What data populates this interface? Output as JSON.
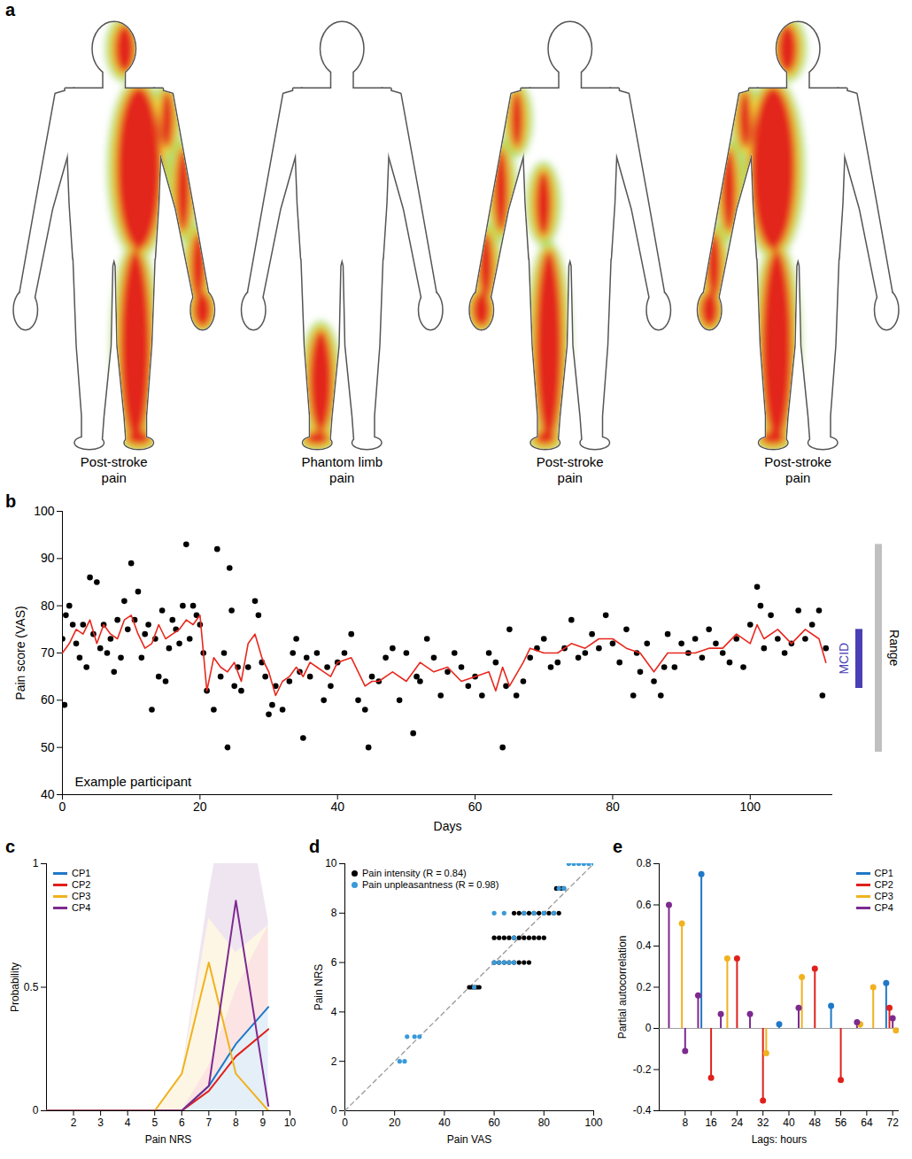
{
  "chart_data": [
    {
      "type": "body_map",
      "panel": "a",
      "figures": [
        {
          "label": "Post-stroke pain"
        },
        {
          "label": "Phantom limb pain"
        },
        {
          "label": "Post-stroke pain"
        },
        {
          "label": "Post-stroke pain"
        }
      ]
    },
    {
      "type": "scatter",
      "panel": "b",
      "xlabel": "Days",
      "ylabel": "Pain score (VAS)",
      "xlim": [
        0,
        112
      ],
      "xticks": [
        0,
        20,
        40,
        60,
        80,
        100
      ],
      "ylim": [
        40,
        100
      ],
      "yticks": [
        40,
        50,
        60,
        70,
        80,
        90,
        100
      ],
      "series": [
        {
          "type": "scatter",
          "color": "#000000",
          "marker": "circle",
          "x": [
            0,
            0.3,
            0.5,
            1,
            1.5,
            2,
            2.5,
            3,
            3.5,
            4,
            4.5,
            5,
            5.5,
            6,
            6.5,
            7,
            7.5,
            8,
            8.5,
            9,
            9.5,
            10,
            10.5,
            11,
            11.5,
            12,
            12.5,
            13,
            13.5,
            14,
            14.5,
            15,
            15.5,
            16,
            16.5,
            17,
            17.5,
            18,
            18.5,
            19,
            19.5,
            20,
            20.5,
            21,
            22,
            22.5,
            23,
            23.5,
            24,
            24.3,
            24.6,
            25,
            25.5,
            26,
            27,
            28,
            28.5,
            29,
            29.5,
            30,
            30.5,
            31,
            32,
            33,
            33.5,
            34,
            34.5,
            35,
            35.5,
            36,
            37,
            38,
            38.5,
            39,
            40,
            41,
            42,
            43,
            44,
            44.5,
            45,
            46,
            47,
            48,
            49,
            50,
            51,
            51.5,
            52,
            53,
            54,
            55,
            56,
            57,
            58,
            59,
            60,
            61,
            62,
            63,
            64,
            64.5,
            65,
            66,
            67,
            68,
            69,
            70,
            71,
            72,
            73,
            74,
            75,
            76,
            77,
            78,
            79,
            80,
            81,
            82,
            83,
            83.5,
            84,
            85,
            86,
            87,
            87.5,
            88,
            89,
            90,
            91,
            92,
            93,
            94,
            95,
            96,
            97,
            98,
            99,
            100,
            101,
            101.5,
            102,
            103,
            104,
            105,
            106,
            107,
            108,
            109,
            110,
            110.5,
            111
          ],
          "values": [
            73,
            59,
            78,
            80,
            76,
            72,
            69,
            76,
            67,
            86,
            74,
            85,
            71,
            76,
            70,
            73,
            66,
            77,
            69,
            81,
            75,
            89,
            77,
            83,
            69,
            74,
            76,
            58,
            73,
            65,
            79,
            64,
            71,
            77,
            75,
            72,
            80,
            93,
            73,
            80,
            78,
            76,
            70,
            62,
            58,
            92,
            65,
            70,
            50,
            88,
            79,
            63,
            67,
            62,
            67,
            81,
            78,
            68,
            65,
            57,
            59,
            63,
            58,
            64,
            70,
            73,
            66,
            52,
            69,
            65,
            70,
            60,
            67,
            63,
            68,
            70,
            74,
            60,
            58,
            50,
            65,
            64,
            69,
            71,
            60,
            70,
            53,
            65,
            64,
            73,
            69,
            61,
            66,
            70,
            67,
            63,
            65,
            61,
            70,
            68,
            50,
            63,
            75,
            61,
            64,
            69,
            71,
            73,
            67,
            68,
            71,
            77,
            69,
            70,
            74,
            71,
            78,
            72,
            68,
            75,
            61,
            70,
            66,
            72,
            64,
            61,
            67,
            74,
            67,
            72,
            70,
            73,
            69,
            75,
            72,
            70,
            68,
            73,
            67,
            76,
            84,
            80,
            71,
            78,
            73,
            70,
            72,
            79,
            73,
            76,
            79,
            61,
            71
          ]
        },
        {
          "type": "line",
          "color": "#e8281e",
          "line_style": "solid",
          "x": [
            0,
            1,
            2,
            3,
            4,
            5,
            6,
            7,
            8,
            9,
            10,
            11,
            12,
            13,
            14,
            15,
            16,
            17,
            18,
            19,
            20,
            21,
            22,
            23,
            24,
            25,
            26,
            27,
            28,
            29,
            30,
            31,
            32,
            33,
            34,
            35,
            36,
            37,
            38,
            39,
            40,
            42,
            44,
            45,
            46,
            48,
            50,
            52,
            54,
            56,
            58,
            60,
            62,
            63,
            64,
            65,
            67,
            68,
            70,
            72,
            74,
            76,
            78,
            80,
            82,
            84,
            86,
            88,
            90,
            92,
            94,
            96,
            98,
            100,
            101,
            102,
            104,
            106,
            108,
            110,
            111
          ],
          "values": [
            70,
            72,
            75,
            74,
            77,
            72,
            76,
            74,
            73,
            77,
            78,
            74,
            71,
            72,
            76,
            73,
            74,
            75,
            77,
            76,
            78,
            62,
            69,
            67,
            66,
            68,
            64,
            72,
            74,
            69,
            66,
            61,
            64,
            65,
            67,
            65,
            68,
            67,
            66,
            65,
            68,
            69,
            63,
            64,
            64,
            66,
            64,
            68,
            66,
            67,
            64,
            65,
            66,
            62,
            67,
            63,
            68,
            71,
            70,
            70,
            72,
            71,
            73,
            73,
            71,
            70,
            66,
            70,
            70,
            70,
            71,
            71,
            74,
            72,
            76,
            73,
            75,
            72,
            75,
            73,
            68
          ]
        }
      ],
      "annotations": [
        {
          "text": "Example participant"
        },
        {
          "text": "MCID",
          "range": [
            62.5,
            75
          ],
          "color": "#4b3fb5"
        },
        {
          "text": "Range",
          "range": [
            49,
            93
          ],
          "color": "#c0c0c0"
        }
      ]
    },
    {
      "type": "line",
      "panel": "c",
      "xlabel": "Pain NRS",
      "ylabel": "Probability",
      "legend": "top-left",
      "xlim": [
        1,
        10
      ],
      "xticks": [
        2,
        3,
        4,
        5,
        6,
        7,
        8,
        9,
        10
      ],
      "ylim": [
        0,
        1
      ],
      "yticks": [
        0,
        0.5,
        1
      ],
      "x": [
        1,
        2,
        3,
        4,
        5,
        6,
        7,
        8,
        9.2
      ],
      "series": [
        {
          "name": "CP1",
          "color": "#1f78c8",
          "values": [
            0,
            0,
            0,
            0,
            0,
            0,
            0.1,
            0.27,
            0.42
          ]
        },
        {
          "name": "CP2",
          "color": "#e0201b",
          "values": [
            0,
            0,
            0,
            0,
            0,
            0,
            0.08,
            0.22,
            0.33
          ]
        },
        {
          "name": "CP3",
          "color": "#f0b21e",
          "values": [
            0,
            0,
            0,
            0,
            0,
            0.15,
            0.6,
            0.15,
            0
          ]
        },
        {
          "name": "CP4",
          "color": "#7d2a8f",
          "values": [
            0,
            0,
            0,
            0,
            0,
            0,
            0.1,
            0.85,
            0.02
          ]
        }
      ]
    },
    {
      "type": "scatter",
      "panel": "d",
      "xlabel": "Pain VAS",
      "ylabel": "Pain NRS",
      "legend": "top-left",
      "xlim": [
        0,
        100
      ],
      "xticks": [
        0,
        20,
        40,
        60,
        80,
        100
      ],
      "ylim": [
        0,
        10
      ],
      "yticks": [
        0,
        2,
        4,
        6,
        8,
        10
      ],
      "series": [
        {
          "name": "Pain intensity (R = 0.84)",
          "color": "#000000",
          "marker": "circle",
          "x": [
            50,
            51,
            52,
            53,
            54,
            60,
            62,
            64,
            66,
            68,
            70,
            72,
            74,
            60,
            62,
            64,
            66,
            68,
            70,
            72,
            74,
            76,
            78,
            80,
            68,
            70,
            72,
            74,
            76,
            78,
            80,
            82,
            84,
            86,
            85,
            86,
            87,
            88
          ],
          "values": [
            5,
            5,
            5,
            5,
            5,
            6,
            6,
            6,
            6,
            6,
            6,
            6,
            6,
            7,
            7,
            7,
            7,
            7,
            7,
            7,
            7,
            7,
            7,
            7,
            8,
            8,
            8,
            8,
            8,
            8,
            8,
            8,
            8,
            8,
            9,
            9,
            9,
            9
          ]
        },
        {
          "name": "Pain unpleasantness (R = 0.98)",
          "color": "#3a9ad9",
          "marker": "circle",
          "x": [
            22,
            24,
            25,
            28,
            30,
            52,
            60,
            62,
            64,
            66,
            68,
            60,
            64,
            68,
            72,
            76,
            80,
            84,
            86,
            88,
            90,
            92,
            94,
            96,
            98,
            100
          ],
          "values": [
            2,
            2,
            3,
            3,
            3,
            5,
            6,
            6,
            6,
            6,
            6,
            8,
            8,
            7,
            8,
            8,
            8,
            8,
            9,
            9,
            10,
            10,
            10,
            10,
            10,
            10
          ]
        }
      ]
    },
    {
      "type": "stem",
      "panel": "e",
      "xlabel": "Lags: hours",
      "ylabel": "Partial autocorrelation",
      "legend": "top-right",
      "xlim": [
        0,
        74
      ],
      "xticks": [
        8,
        16,
        24,
        32,
        40,
        48,
        56,
        64,
        72
      ],
      "ylim": [
        -0.4,
        0.8
      ],
      "yticks": [
        -0.4,
        -0.2,
        0,
        0.2,
        0.4,
        0.6,
        0.8
      ],
      "series": [
        {
          "name": "CP1",
          "color": "#1f78c8",
          "x": [
            13,
            37,
            53,
            70
          ],
          "values": [
            0.75,
            0.02,
            0.11,
            0.22
          ]
        },
        {
          "name": "CP2",
          "color": "#e0201b",
          "x": [
            16,
            24,
            32,
            48,
            56,
            71
          ],
          "values": [
            -0.24,
            0.34,
            -0.35,
            0.29,
            -0.25,
            0.1
          ]
        },
        {
          "name": "CP3",
          "color": "#f0b21e",
          "x": [
            7,
            21,
            33,
            44,
            62,
            66,
            73
          ],
          "values": [
            0.51,
            0.34,
            -0.12,
            0.25,
            0.02,
            0.2,
            -0.01
          ]
        },
        {
          "name": "CP4",
          "color": "#7d2a8f",
          "x": [
            3,
            8,
            12,
            19,
            28,
            43,
            61,
            72
          ],
          "values": [
            0.6,
            -0.11,
            0.16,
            0.07,
            0.07,
            0.1,
            0.03,
            0.05
          ]
        }
      ]
    }
  ]
}
